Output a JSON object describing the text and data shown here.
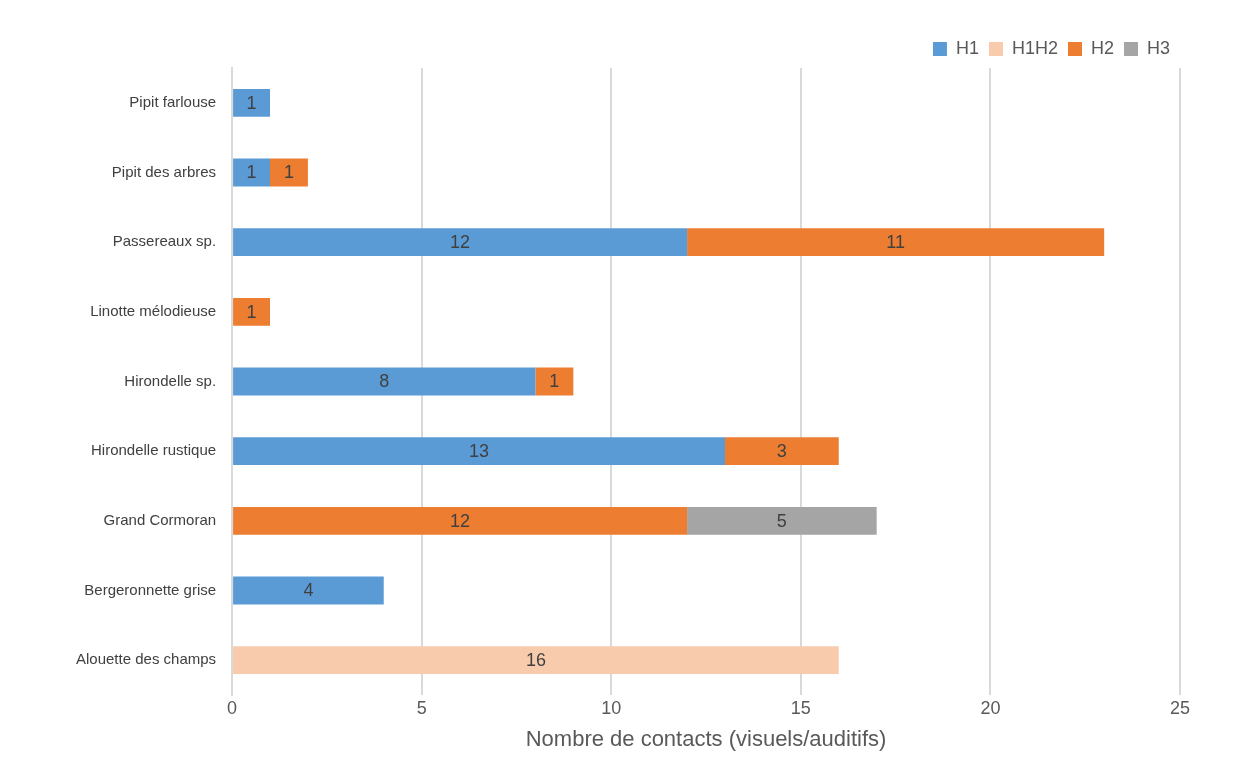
{
  "chart_data": {
    "type": "bar",
    "orientation": "horizontal",
    "stacked": true,
    "xlabel": "Nombre de contacts (visuels/auditifs)",
    "categories": [
      "Pipit farlouse",
      "Pipit des arbres",
      "Passereaux sp.",
      "Linotte mélodieuse",
      "Hirondelle sp.",
      "Hirondelle rustique",
      "Grand Cormoran",
      "Bergeronnette grise",
      "Alouette des champs"
    ],
    "series": [
      {
        "name": "H1",
        "color": "#5b9bd5",
        "values": [
          1,
          1,
          12,
          null,
          8,
          13,
          null,
          4,
          null
        ]
      },
      {
        "name": "H1H2",
        "color": "#f8cbad",
        "values": [
          null,
          null,
          null,
          null,
          null,
          null,
          null,
          null,
          16
        ]
      },
      {
        "name": "H2",
        "color": "#ed7d31",
        "values": [
          null,
          1,
          11,
          1,
          1,
          3,
          12,
          null,
          null
        ]
      },
      {
        "name": "H3",
        "color": "#a5a5a5",
        "values": [
          null,
          null,
          null,
          null,
          null,
          null,
          5,
          null,
          null
        ]
      }
    ],
    "xlim": [
      0,
      25
    ],
    "xticks": [
      0,
      5,
      10,
      15,
      20,
      25
    ],
    "grid": "x",
    "legend": "top right",
    "data_labels": true
  }
}
